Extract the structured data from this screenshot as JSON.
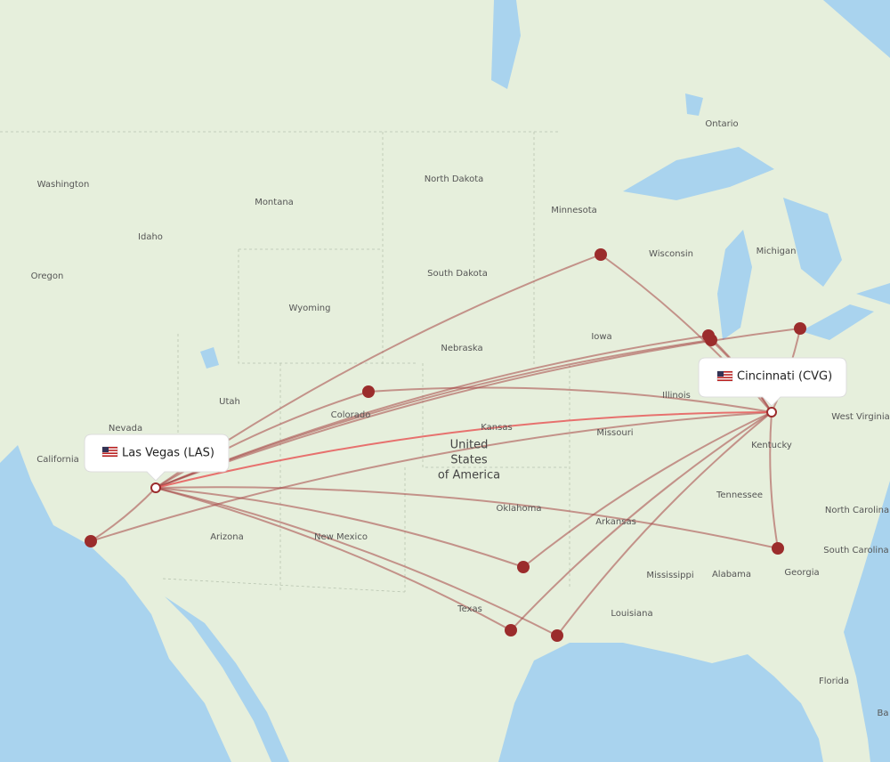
{
  "airports": [
    {
      "label": "Las Vegas (LAS)"
    },
    {
      "label": "Cincinnati (CVG)"
    }
  ],
  "map_labels": [
    "Washington",
    "Oregon",
    "California",
    "Nevada",
    "Idaho",
    "Montana",
    "Wyoming",
    "Utah",
    "Arizona",
    "Colorado",
    "New Mexico",
    "North Dakota",
    "South Dakota",
    "Nebraska",
    "Kansas",
    "Oklahoma",
    "Texas",
    "Minnesota",
    "Iowa",
    "Missouri",
    "Arkansas",
    "Louisiana",
    "Wisconsin",
    "Illinois",
    "Michigan",
    "Kentucky",
    "Tennessee",
    "Mississippi",
    "Alabama",
    "Georgia",
    "Florida",
    "North Carolina",
    "South Carolina",
    "West Virginia",
    "Ontario",
    "Ba"
  ],
  "country_label": [
    "United",
    "States",
    "of America"
  ]
}
